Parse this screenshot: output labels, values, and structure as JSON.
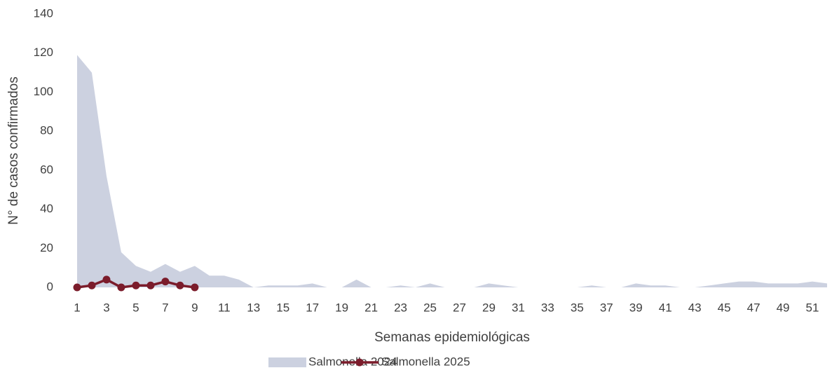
{
  "chart_data": {
    "type": "area-line",
    "x_label": "Semanas epidemiológicas",
    "y_label": "N° de casos confirmados",
    "x": [
      1,
      2,
      3,
      4,
      5,
      6,
      7,
      8,
      9,
      10,
      11,
      12,
      13,
      14,
      15,
      16,
      17,
      18,
      19,
      20,
      21,
      22,
      23,
      24,
      25,
      26,
      27,
      28,
      29,
      30,
      31,
      32,
      33,
      34,
      35,
      36,
      37,
      38,
      39,
      40,
      41,
      42,
      43,
      44,
      45,
      46,
      47,
      48,
      49,
      50,
      51,
      52
    ],
    "xlim": [
      1,
      52
    ],
    "xticks": [
      1,
      3,
      5,
      7,
      9,
      11,
      13,
      15,
      17,
      19,
      21,
      23,
      25,
      27,
      29,
      31,
      33,
      35,
      37,
      39,
      41,
      43,
      45,
      47,
      49,
      51
    ],
    "ylim": [
      0,
      140
    ],
    "yticks": [
      0,
      20,
      40,
      60,
      80,
      100,
      120,
      140
    ],
    "grid": false,
    "legend": "bottom",
    "series": [
      {
        "name": "Salmonella 2024",
        "type": "area",
        "color": "#ccd1e0",
        "values": [
          119,
          110,
          57,
          18,
          11,
          8,
          12,
          8,
          11,
          6,
          6,
          4,
          0,
          1,
          1,
          1,
          2,
          0,
          0,
          4,
          0,
          0,
          1,
          0,
          2,
          0,
          0,
          0,
          2,
          1,
          0,
          0,
          0,
          0,
          0,
          1,
          0,
          0,
          2,
          1,
          1,
          0,
          0,
          1,
          2,
          3,
          3,
          2,
          2,
          2,
          3,
          2
        ]
      },
      {
        "name": "Salmonella 2025",
        "type": "line",
        "color": "#7b1c2b",
        "values": [
          0,
          1,
          4,
          0,
          1,
          1,
          3,
          1,
          0,
          null,
          null,
          null,
          null,
          null,
          null,
          null,
          null,
          null,
          null,
          null,
          null,
          null,
          null,
          null,
          null,
          null,
          null,
          null,
          null,
          null,
          null,
          null,
          null,
          null,
          null,
          null,
          null,
          null,
          null,
          null,
          null,
          null,
          null,
          null,
          null,
          null,
          null,
          null,
          null,
          null,
          null,
          null
        ]
      }
    ]
  }
}
